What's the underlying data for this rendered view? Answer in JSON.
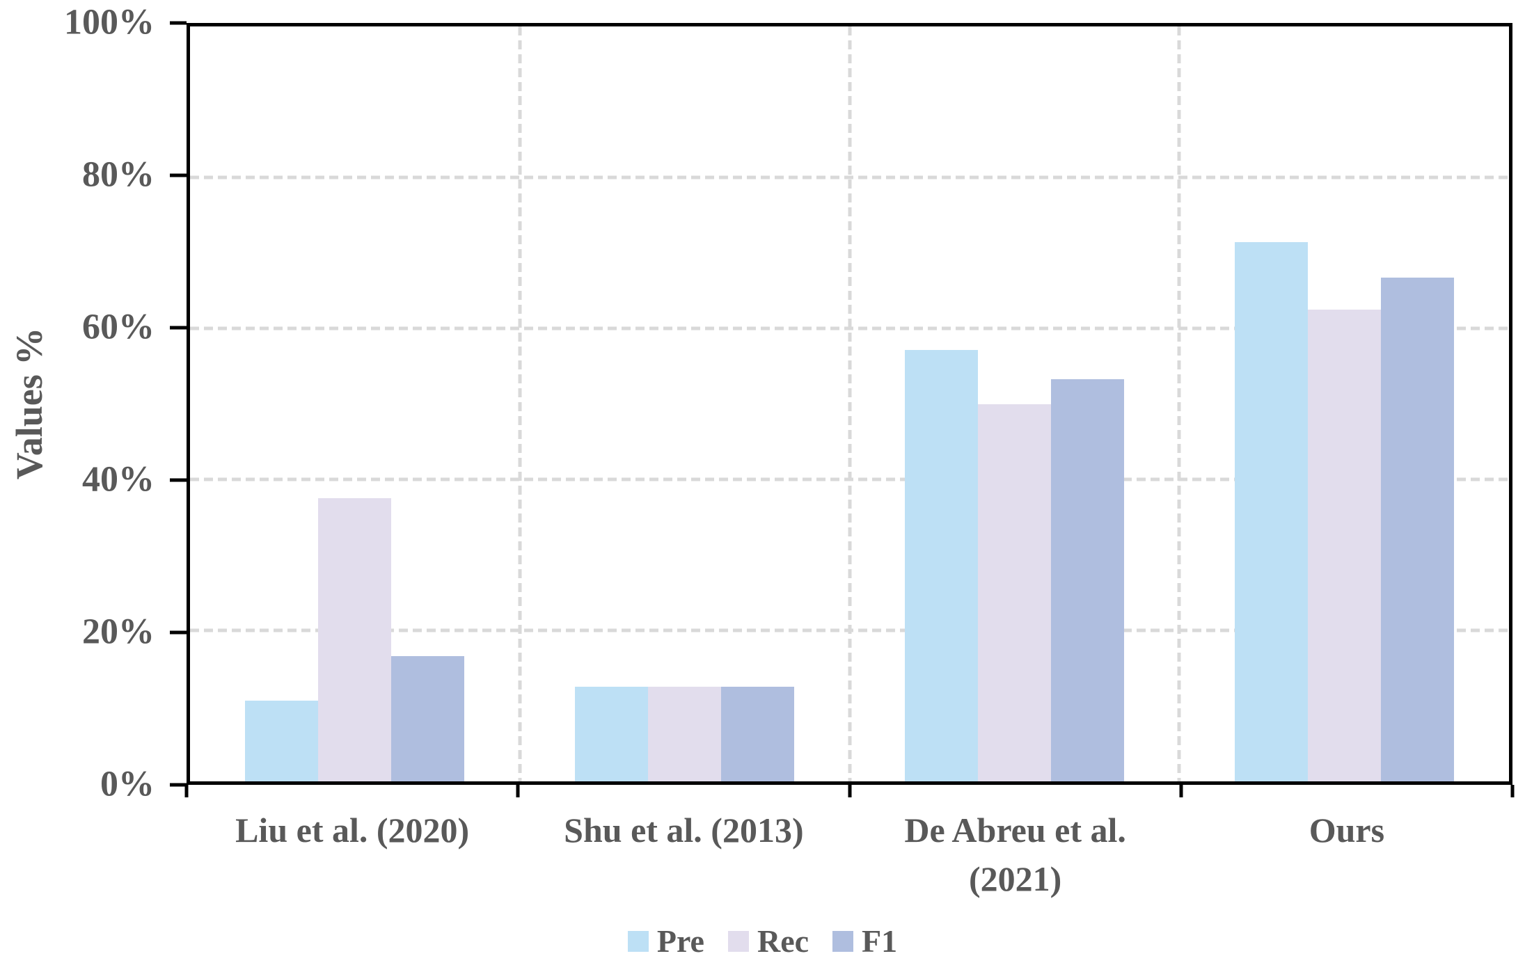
{
  "chart_data": {
    "type": "bar",
    "title": "",
    "ylabel": "Values %",
    "xlabel": "",
    "categories": [
      "Liu et al. (2020)",
      "Shu et al. (2013)",
      "De Abreu et al. (2021)",
      "Ours"
    ],
    "series": [
      {
        "name": "Pre",
        "color": "#BDE0F5",
        "values": [
          10.7,
          12.5,
          57.1,
          71.4
        ]
      },
      {
        "name": "Rec",
        "color": "#E2DDED",
        "values": [
          37.5,
          12.5,
          50.0,
          62.5
        ]
      },
      {
        "name": "F1",
        "color": "#AFBEDF",
        "values": [
          16.6,
          12.5,
          53.3,
          66.7
        ]
      }
    ],
    "ylim": [
      0,
      100
    ],
    "ytick_values": [
      0,
      20,
      40,
      60,
      80,
      100
    ],
    "ytick_labels": [
      "0%",
      "20%",
      "40%",
      "60%",
      "80%",
      "100%"
    ],
    "grid": {
      "horizontal_at": [
        20,
        40,
        60,
        80
      ],
      "vertical_at_percent": [
        25,
        50,
        75
      ],
      "style": "dashed",
      "color": "#D9D9D9"
    },
    "legend": {
      "position": "bottom",
      "entries": [
        "Pre",
        "Rec",
        "F1"
      ]
    },
    "axis_color": "#000000",
    "text_color": "#595959"
  }
}
